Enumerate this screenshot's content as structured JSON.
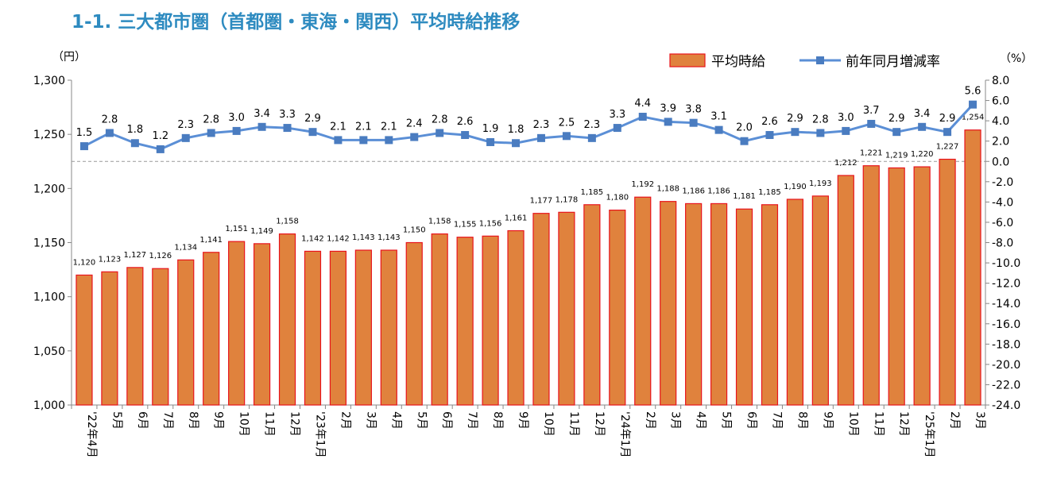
{
  "title": "1-1. 三大都市圏（首都圏・東海・関西）平均時給推移",
  "chart_data": {
    "type": "bar+line",
    "title": "1-1. 三大都市圏（首都圏・東海・関西）平均時給推移",
    "y_left_unit": "（円）",
    "y_right_unit": "（%）",
    "y_left_lim": [
      1000,
      1300
    ],
    "y_left_ticks": [
      "1,000",
      "1,050",
      "1,100",
      "1,150",
      "1,200",
      "1,250",
      "1,300"
    ],
    "y_right_lim": [
      -24,
      8
    ],
    "y_right_ticks": [
      "8.0",
      "6.0",
      "4.0",
      "2.0",
      "0.0",
      "-2.0",
      "-4.0",
      "-6.0",
      "-8.0",
      "-10.0",
      "-12.0",
      "-14.0",
      "-16.0",
      "-18.0",
      "-20.0",
      "-22.0",
      "-24.0"
    ],
    "grid": false,
    "zero_line": true,
    "legend_position": "top-right",
    "categories": [
      "'22年4月",
      "5月",
      "6月",
      "7月",
      "8月",
      "9月",
      "10月",
      "11月",
      "12月",
      "'23年1月",
      "2月",
      "3月",
      "4月",
      "5月",
      "6月",
      "7月",
      "8月",
      "9月",
      "10月",
      "11月",
      "12月",
      "'24年1月",
      "2月",
      "3月",
      "4月",
      "5月",
      "6月",
      "7月",
      "8月",
      "9月",
      "10月",
      "11月",
      "12月",
      "'25年1月",
      "2月",
      "3月"
    ],
    "series": [
      {
        "name": "平均時給",
        "type": "bar",
        "axis": "left",
        "color": "#e0823d",
        "edge_color": "#e8141c",
        "values": [
          1120,
          1123,
          1127,
          1126,
          1134,
          1141,
          1151,
          1149,
          1158,
          1142,
          1142,
          1143,
          1143,
          1150,
          1158,
          1155,
          1156,
          1161,
          1177,
          1178,
          1185,
          1180,
          1192,
          1188,
          1186,
          1186,
          1181,
          1185,
          1190,
          1193,
          1212,
          1221,
          1219,
          1220,
          1227,
          1254
        ],
        "labels": [
          "1,120",
          "1,123",
          "1,127",
          "1,126",
          "1,134",
          "1,141",
          "1,151",
          "1,149",
          "1,158",
          "1,142",
          "1,142",
          "1,143",
          "1,143",
          "1,150",
          "1,158",
          "1,155",
          "1,156",
          "1,161",
          "1,177",
          "1,178",
          "1,185",
          "1,180",
          "1,192",
          "1,188",
          "1,186",
          "1,186",
          "1,181",
          "1,185",
          "1,190",
          "1,193",
          "1,212",
          "1,221",
          "1,219",
          "1,220",
          "1,227",
          "1,254"
        ]
      },
      {
        "name": "前年同月増減率",
        "type": "line",
        "axis": "right",
        "color": "#5b8fd6",
        "marker_color": "#4a7cc0",
        "values": [
          1.5,
          2.8,
          1.8,
          1.2,
          2.3,
          2.8,
          3.0,
          3.4,
          3.3,
          2.9,
          2.1,
          2.1,
          2.1,
          2.4,
          2.8,
          2.6,
          1.9,
          1.8,
          2.3,
          2.5,
          2.3,
          3.3,
          4.4,
          3.9,
          3.8,
          3.1,
          2.0,
          2.6,
          2.9,
          2.8,
          3.0,
          3.7,
          2.9,
          3.4,
          2.9,
          5.6
        ],
        "labels": [
          "1.5",
          "2.8",
          "1.8",
          "1.2",
          "2.3",
          "2.8",
          "3.0",
          "3.4",
          "3.3",
          "2.9",
          "2.1",
          "2.1",
          "2.1",
          "2.4",
          "2.8",
          "2.6",
          "1.9",
          "1.8",
          "2.3",
          "2.5",
          "2.3",
          "3.3",
          "4.4",
          "3.9",
          "3.8",
          "3.1",
          "2.0",
          "2.6",
          "2.9",
          "2.8",
          "3.0",
          "3.7",
          "2.9",
          "3.4",
          "2.9",
          "5.6"
        ]
      }
    ]
  }
}
